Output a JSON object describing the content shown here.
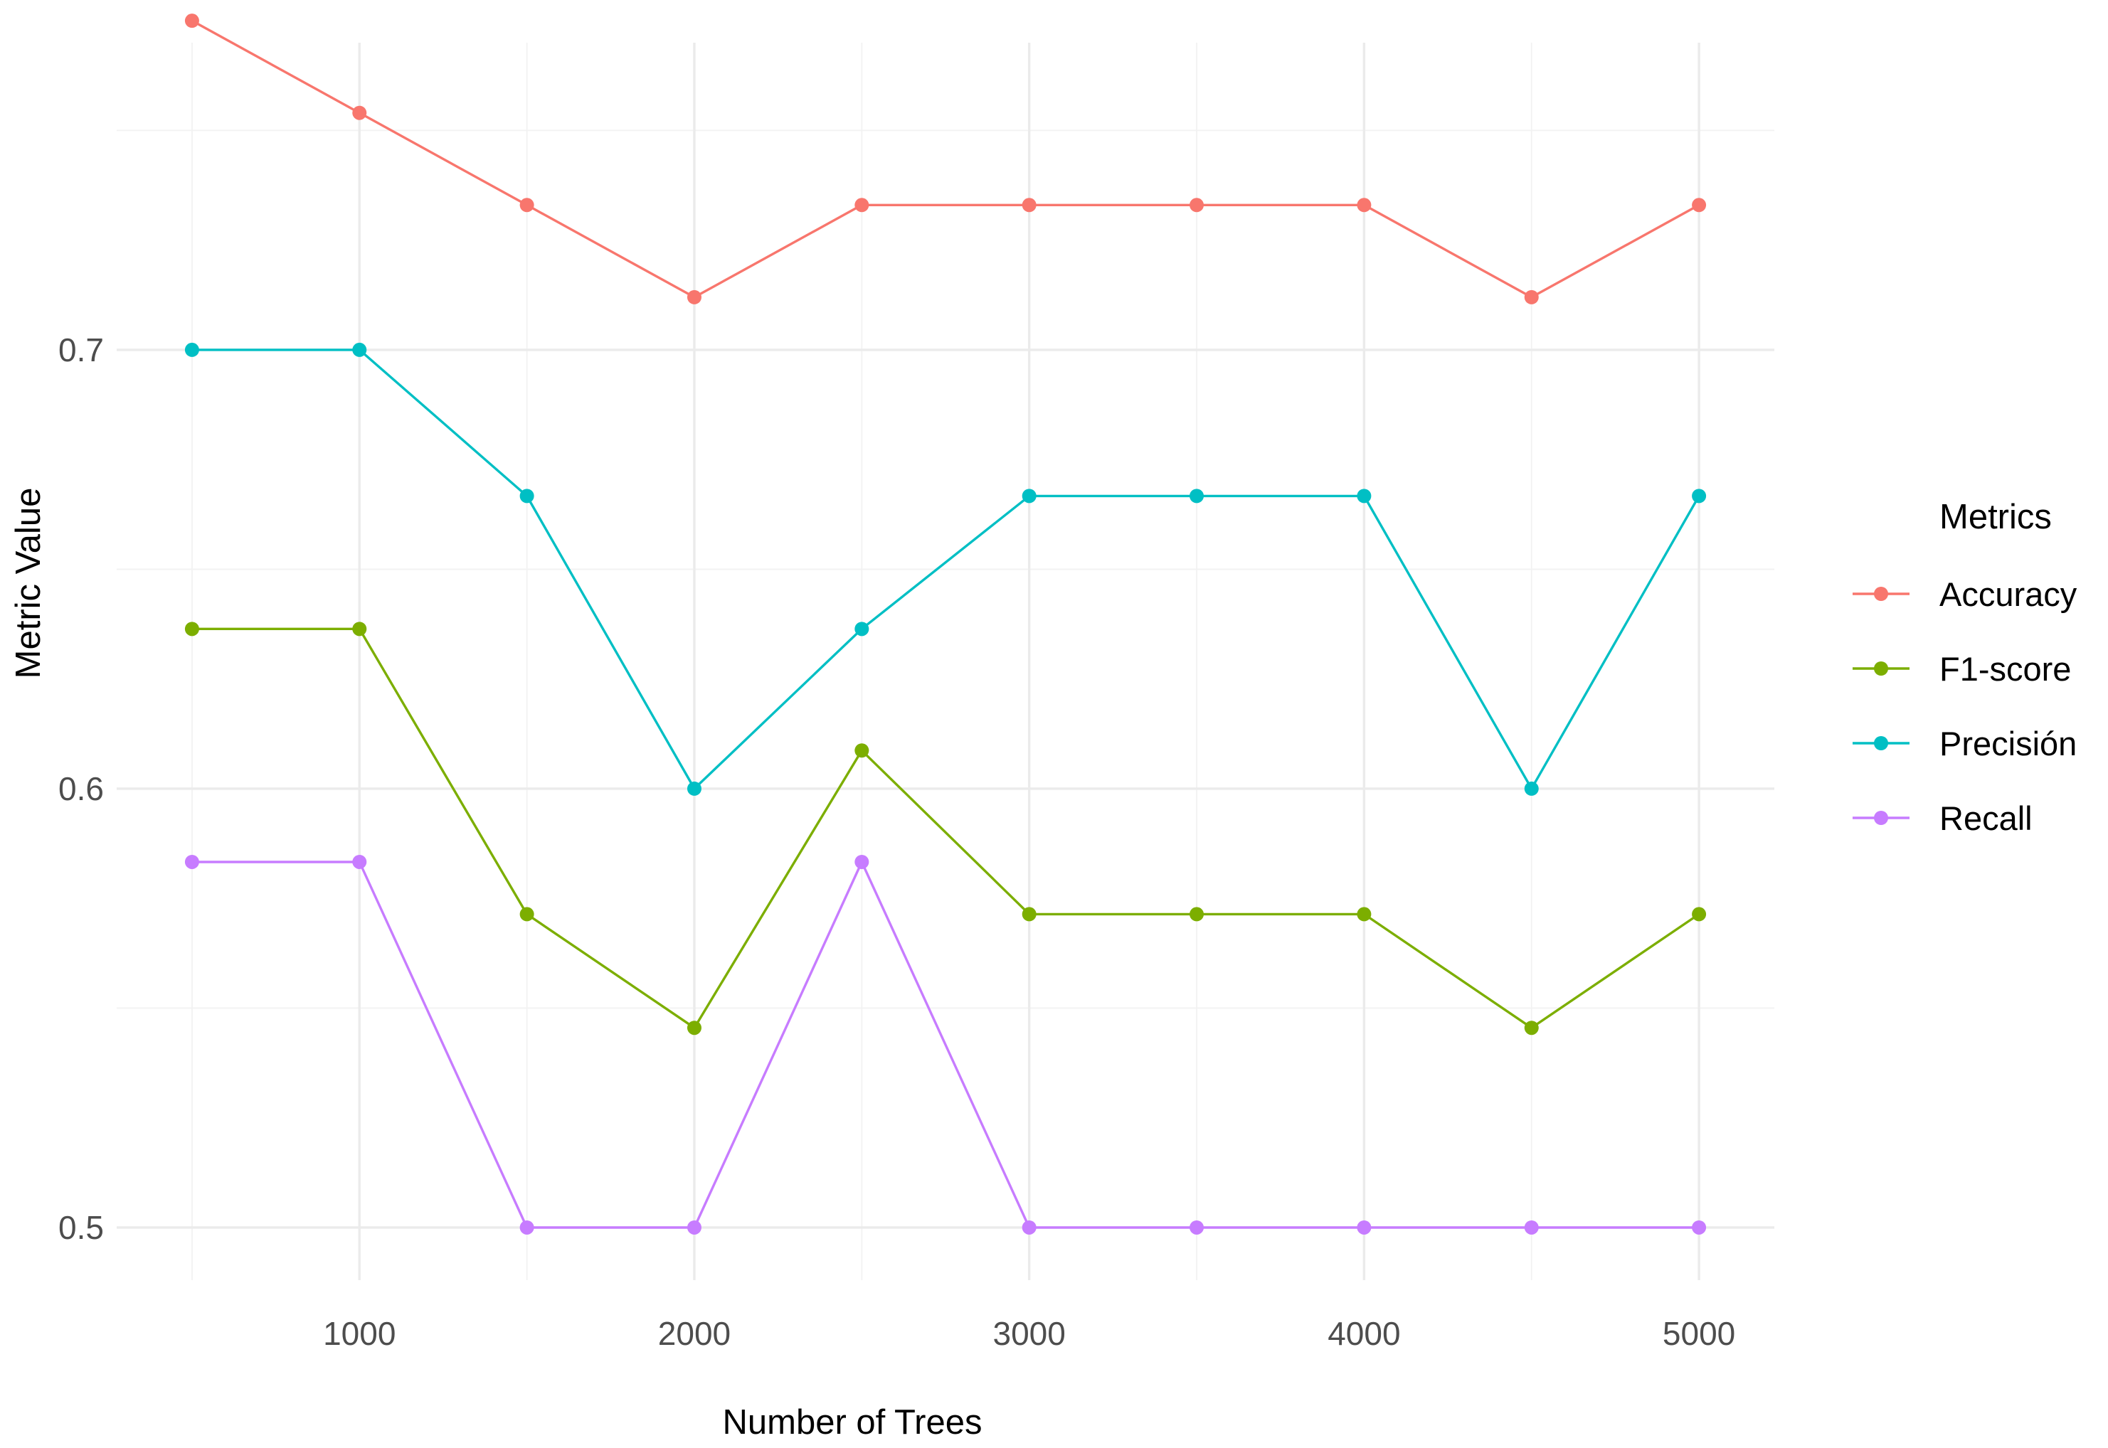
{
  "chart_data": {
    "type": "line",
    "title": "",
    "xlabel": "Number of Trees",
    "ylabel": "Metric Value",
    "x": [
      500,
      1000,
      1500,
      2000,
      2500,
      3000,
      3500,
      4000,
      4500,
      5000
    ],
    "xticks": [
      1000,
      2000,
      3000,
      4000,
      5000
    ],
    "xtick_labels": [
      "1000",
      "2000",
      "3000",
      "4000",
      "5000"
    ],
    "xlim": [
      275,
      5225
    ],
    "yticks": [
      0.5,
      0.6,
      0.7
    ],
    "ytick_labels": [
      "0.5",
      "0.6",
      "0.7"
    ],
    "ylim": [
      0.488,
      0.77
    ],
    "grid": true,
    "legend": {
      "title": "Metrics",
      "position": "right"
    },
    "series": [
      {
        "name": "Accuracy",
        "color": "#F8766D",
        "values": [
          0.775,
          0.754,
          0.733,
          0.712,
          0.733,
          0.733,
          0.733,
          0.733,
          0.712,
          0.733
        ]
      },
      {
        "name": "F1-score",
        "color": "#7CAE00",
        "values": [
          0.6364,
          0.6364,
          0.5714,
          0.5455,
          0.6087,
          0.5714,
          0.5714,
          0.5714,
          0.5455,
          0.5714
        ]
      },
      {
        "name": "Precisión",
        "color": "#00BFC4",
        "values": [
          0.7,
          0.7,
          0.6667,
          0.6,
          0.6364,
          0.6667,
          0.6667,
          0.6667,
          0.6,
          0.6667
        ]
      },
      {
        "name": "Recall",
        "color": "#C77CFF",
        "values": [
          0.5833,
          0.5833,
          0.5,
          0.5,
          0.5833,
          0.5,
          0.5,
          0.5,
          0.5,
          0.5
        ]
      }
    ]
  }
}
